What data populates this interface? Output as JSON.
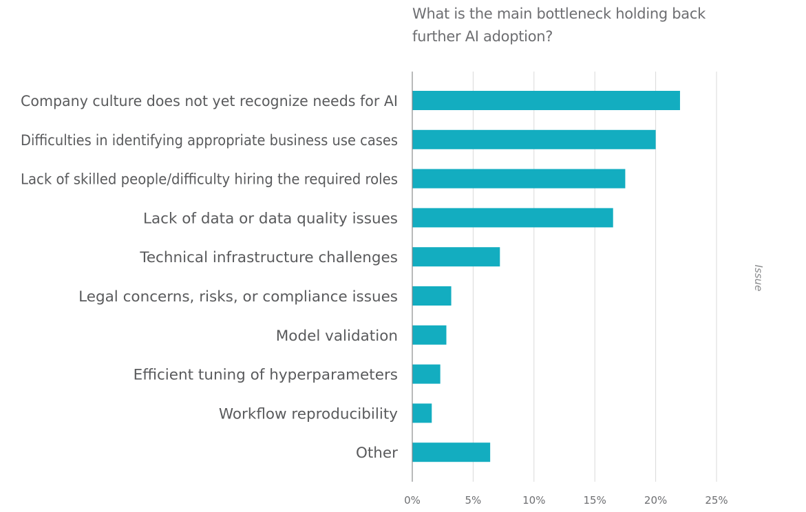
{
  "chart_data": {
    "type": "bar",
    "orientation": "horizontal",
    "title": "What is the main bottleneck holding back further AI adoption?",
    "side_label": "Issue",
    "categories": [
      "Company culture does not yet recognize needs for AI",
      "Difficulties in identifying appropriate business use cases",
      "Lack of skilled people/difficulty hiring the required roles",
      "Lack of data or data quality issues",
      "Technical infrastructure challenges",
      "Legal concerns, risks, or compliance issues",
      "Model validation",
      "Efficient tuning of hyperparameters",
      "Workflow reproducibility",
      "Other"
    ],
    "values": [
      22,
      20,
      17.5,
      16.5,
      7.2,
      3.2,
      2.8,
      2.3,
      1.6,
      6.4
    ],
    "xlim": [
      0,
      25
    ],
    "xticks": [
      0,
      5,
      10,
      15,
      20,
      25
    ],
    "xtick_labels": [
      "0%",
      "5%",
      "10%",
      "15%",
      "20%",
      "25%"
    ],
    "grid": true,
    "bar_color": "#13adc0",
    "grid_color": "#d9d9d9",
    "axis_color": "#8a8b8d"
  }
}
